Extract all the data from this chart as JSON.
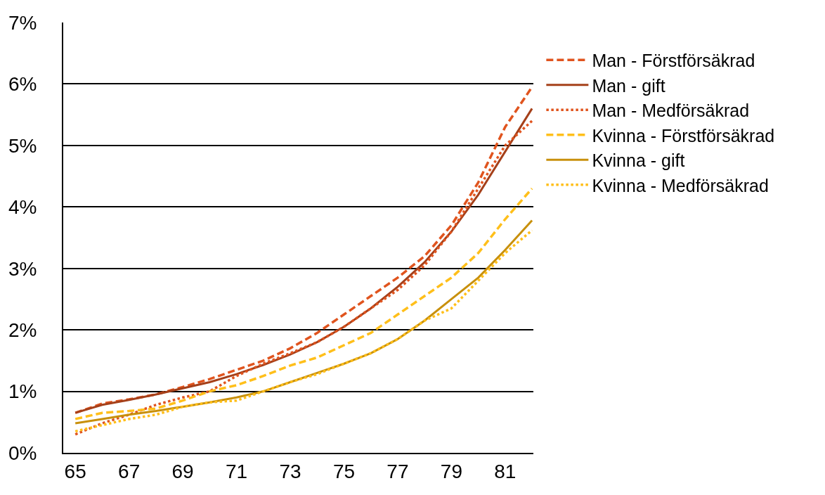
{
  "chart_data": {
    "type": "line",
    "x": [
      65,
      66,
      67,
      68,
      69,
      70,
      71,
      72,
      73,
      74,
      75,
      76,
      77,
      78,
      79,
      80,
      81,
      82
    ],
    "series": [
      {
        "name": "Man - Förstförsäkrad",
        "color": "#e0541e",
        "line_style": "dashed",
        "values": [
          0.65,
          0.8,
          0.87,
          0.95,
          1.07,
          1.2,
          1.35,
          1.5,
          1.7,
          1.95,
          2.25,
          2.55,
          2.85,
          3.2,
          3.7,
          4.4,
          5.3,
          5.95
        ]
      },
      {
        "name": "Man - gift",
        "color": "#a5401a",
        "line_style": "solid",
        "values": [
          0.65,
          0.78,
          0.86,
          0.95,
          1.05,
          1.15,
          1.28,
          1.43,
          1.6,
          1.8,
          2.05,
          2.35,
          2.7,
          3.1,
          3.6,
          4.2,
          4.9,
          5.6
        ]
      },
      {
        "name": "Man - Medförsäkrad",
        "color": "#e0541e",
        "line_style": "dotted",
        "values": [
          0.3,
          0.48,
          0.62,
          0.78,
          0.9,
          1.0,
          1.25,
          1.45,
          1.62,
          1.8,
          2.05,
          2.35,
          2.65,
          3.05,
          3.6,
          4.3,
          5.0,
          5.4
        ]
      },
      {
        "name": "Kvinna - Förstförsäkrad",
        "color": "#ffbf1a",
        "line_style": "dashed",
        "values": [
          0.55,
          0.65,
          0.68,
          0.72,
          0.85,
          1.0,
          1.1,
          1.25,
          1.42,
          1.55,
          1.75,
          1.95,
          2.25,
          2.55,
          2.85,
          3.25,
          3.8,
          4.3
        ]
      },
      {
        "name": "Kvinna - gift",
        "color": "#c8900c",
        "line_style": "solid",
        "values": [
          0.48,
          0.55,
          0.62,
          0.68,
          0.75,
          0.82,
          0.9,
          1.0,
          1.15,
          1.3,
          1.45,
          1.62,
          1.85,
          2.15,
          2.5,
          2.85,
          3.3,
          3.78
        ]
      },
      {
        "name": "Kvinna - Medförsäkrad",
        "color": "#ffbf1a",
        "line_style": "dotted",
        "values": [
          0.35,
          0.45,
          0.55,
          0.62,
          0.75,
          0.82,
          0.85,
          1.0,
          1.15,
          1.28,
          1.45,
          1.62,
          1.85,
          2.15,
          2.35,
          2.8,
          3.25,
          3.62
        ]
      }
    ],
    "xlim": [
      64.55,
      82.05
    ],
    "xticks": [
      65,
      67,
      69,
      71,
      73,
      75,
      77,
      79,
      81
    ],
    "ylim": [
      0,
      7
    ],
    "yticks": [
      {
        "value": 0,
        "label": "0%"
      },
      {
        "value": 1,
        "label": "1%"
      },
      {
        "value": 2,
        "label": "2%"
      },
      {
        "value": 3,
        "label": "3%"
      },
      {
        "value": 4,
        "label": "4%"
      },
      {
        "value": 5,
        "label": "5%"
      },
      {
        "value": 6,
        "label": "6%"
      },
      {
        "value": 7,
        "label": "7%"
      }
    ],
    "grid": "y",
    "legend": "right",
    "marker": "none"
  }
}
